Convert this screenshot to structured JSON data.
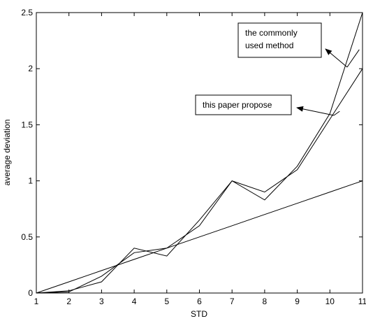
{
  "chart_data": {
    "type": "line",
    "xlabel": "STD",
    "ylabel": "average deviation",
    "xlim": [
      1,
      11
    ],
    "ylim": [
      0,
      2.5
    ],
    "xticks": [
      "1",
      "2",
      "3",
      "4",
      "5",
      "6",
      "7",
      "8",
      "9",
      "10",
      "11"
    ],
    "yticks": [
      "0",
      "0.5",
      "1",
      "1.5",
      "2",
      "2.5"
    ],
    "grid": false,
    "series": [
      {
        "x": [
          1,
          2,
          3,
          4,
          5,
          6,
          7,
          8,
          9,
          10,
          11
        ],
        "y": [
          0,
          0.02,
          0.1,
          0.4,
          0.33,
          0.65,
          1.0,
          0.83,
          1.13,
          1.6,
          2.5
        ]
      },
      {
        "x": [
          1,
          2,
          3,
          4,
          5,
          6,
          7,
          8,
          9,
          10,
          11
        ],
        "y": [
          0,
          0.01,
          0.15,
          0.36,
          0.4,
          0.6,
          1.0,
          0.9,
          1.1,
          1.55,
          2.0
        ]
      },
      {
        "x": [
          1,
          2,
          3,
          4,
          5,
          6,
          7,
          8,
          9,
          10,
          11
        ],
        "y": [
          0,
          0.1,
          0.2,
          0.3,
          0.4,
          0.5,
          0.6,
          0.7,
          0.8,
          0.9,
          1.0
        ]
      }
    ],
    "annotations": [
      {
        "id": "commonly",
        "text_lines": [
          "the commonly",
          "used method"
        ],
        "arrow_to": [
          10.9,
          2.17
        ]
      },
      {
        "id": "paper",
        "text_lines": [
          "this paper propose"
        ],
        "arrow_to": [
          10.3,
          1.62
        ]
      }
    ]
  }
}
